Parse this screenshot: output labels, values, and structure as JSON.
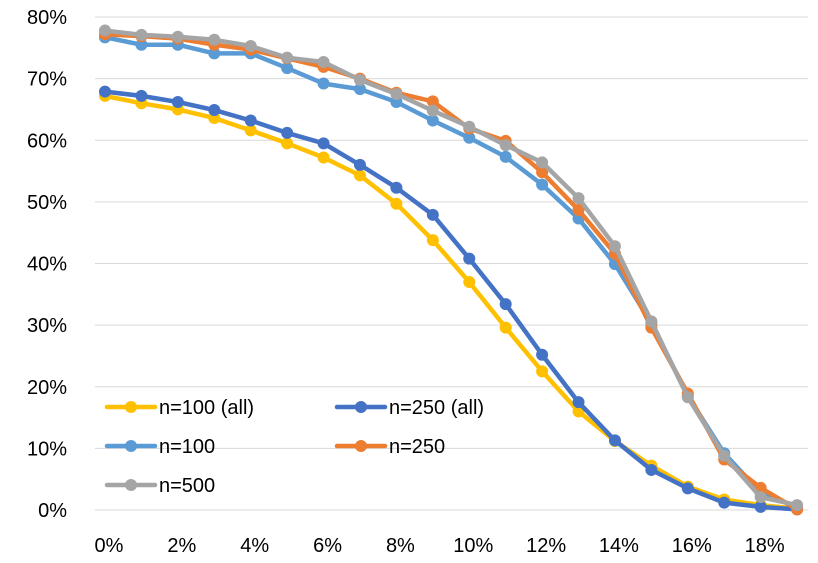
{
  "chart_data": {
    "type": "line",
    "title": "",
    "xlabel": "",
    "ylabel": "",
    "x": [
      0,
      1,
      2,
      3,
      4,
      5,
      6,
      7,
      8,
      9,
      10,
      11,
      12,
      13,
      14,
      15,
      16,
      17,
      18,
      19
    ],
    "xlim": [
      0,
      19
    ],
    "ylim": [
      0,
      80
    ],
    "x_ticks": [
      "0%",
      "2%",
      "4%",
      "6%",
      "8%",
      "10%",
      "12%",
      "14%",
      "16%",
      "18%"
    ],
    "y_ticks": [
      "0%",
      "10%",
      "20%",
      "30%",
      "40%",
      "50%",
      "60%",
      "70%",
      "80%"
    ],
    "grid": true,
    "legend_position": "bottom-left",
    "series": [
      {
        "name": "n=100 (all)",
        "color": "#FFC000",
        "values": [
          67.2,
          66,
          65,
          63.6,
          61.6,
          59.5,
          57.2,
          54.3,
          49.7,
          43.8,
          37,
          29.6,
          22.5,
          16,
          11.2,
          7.2,
          3.8,
          1.7,
          0.8,
          0.2
        ]
      },
      {
        "name": "n=250 (all)",
        "color": "#4472C4",
        "values": [
          67.9,
          67.2,
          66.2,
          64.9,
          63.2,
          61.2,
          59.5,
          56,
          52.3,
          47.9,
          40.8,
          33.4,
          25.2,
          17.5,
          11.3,
          6.5,
          3.5,
          1.2,
          0.5,
          0.1
        ]
      },
      {
        "name": "n=100",
        "color": "#5B9BD5",
        "values": [
          76.7,
          75.5,
          75.5,
          74.1,
          74.1,
          71.7,
          69.2,
          68.3,
          66.2,
          63.2,
          60.4,
          57.3,
          52.8,
          47.3,
          39.9,
          30.3,
          18.5,
          9.2,
          2.8,
          0.5
        ]
      },
      {
        "name": "n=250",
        "color": "#ED7D31",
        "values": [
          77.2,
          76.9,
          76.5,
          75.5,
          74.7,
          73.3,
          71.9,
          70,
          67.7,
          66.3,
          61.9,
          59.9,
          54.8,
          48.7,
          41.6,
          29.6,
          18.9,
          8.2,
          3.6,
          0.1
        ]
      },
      {
        "name": "n=500",
        "color": "#A5A5A5",
        "values": [
          77.8,
          77.1,
          76.8,
          76.3,
          75.3,
          73.4,
          72.7,
          69.8,
          67.5,
          64.8,
          62.2,
          59.2,
          56.4,
          50.6,
          42.8,
          30.6,
          18.3,
          8.8,
          2.1,
          0.8
        ]
      }
    ]
  }
}
